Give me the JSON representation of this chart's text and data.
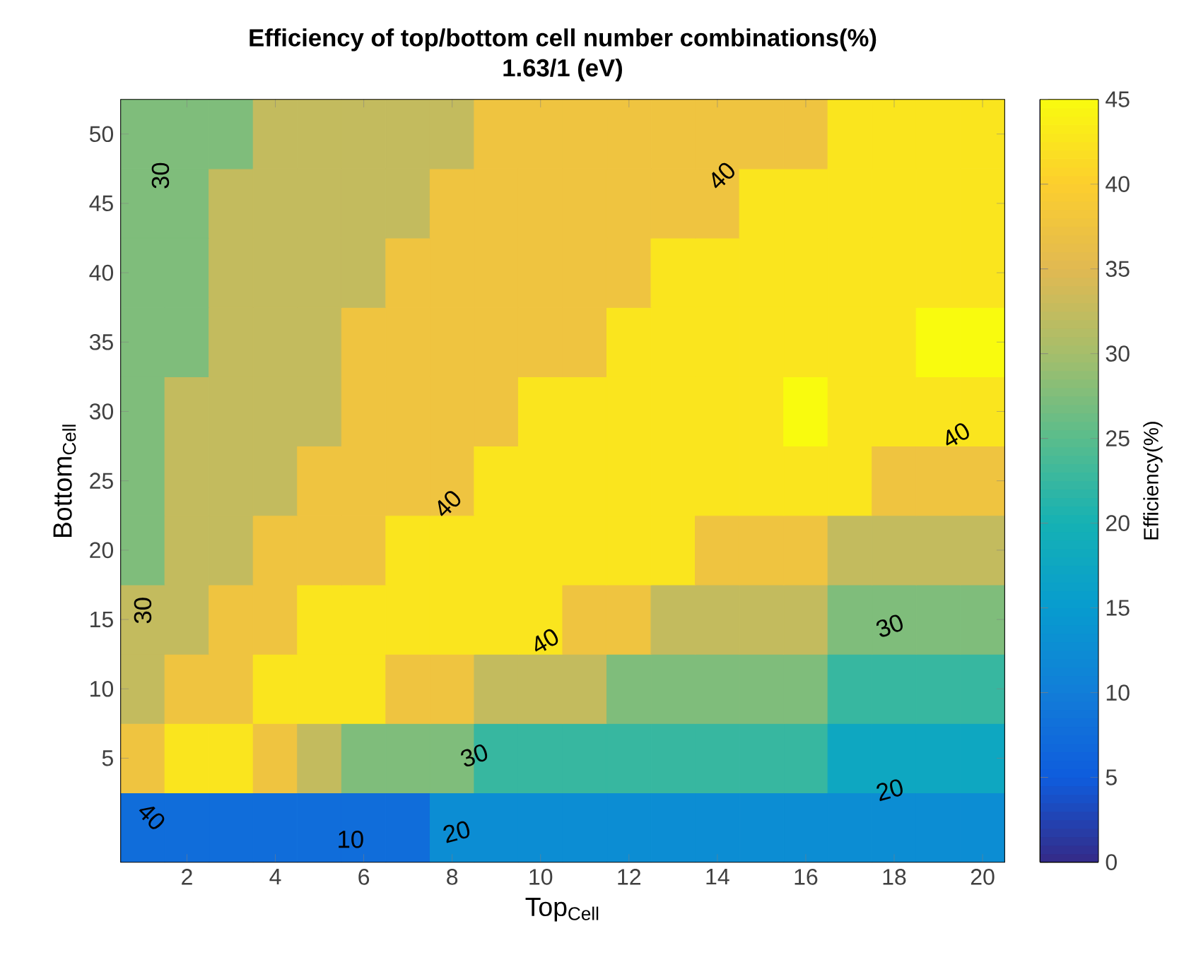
{
  "chart_data": {
    "type": "heatmap",
    "title": "Efficiency of top/bottom cell number combinations(%)",
    "subtitle": "1.63/1 (eV)",
    "xlabel": "Top$_{Cell}$",
    "ylabel": "Bottom$_{Cell}$",
    "clabel": "Efficiency(%)",
    "categories": [
      null,
      "2",
      null,
      "4",
      null,
      "6",
      null,
      "8",
      null,
      "10",
      null,
      "12",
      null,
      "14",
      null,
      "16",
      null,
      "18",
      null,
      "20"
    ],
    "y_categories": [
      "50",
      "45",
      "40",
      "35",
      "30",
      "25",
      "20",
      "15",
      "10",
      "5",
      null
    ],
    "cells": [
      [
        27.5,
        27.5,
        27.5,
        32.5,
        32.5,
        32.5,
        32.5,
        32.5,
        37.5,
        37.5,
        37.5,
        37.5,
        37.5,
        37.5,
        37.5,
        37.5,
        42.5,
        42.5,
        42.5,
        42.5
      ],
      [
        27.5,
        27.5,
        32.5,
        32.5,
        32.5,
        32.5,
        32.5,
        37.5,
        37.5,
        37.5,
        37.5,
        37.5,
        37.5,
        37.5,
        42.5,
        42.5,
        42.5,
        42.5,
        42.5,
        42.5
      ],
      [
        27.5,
        27.5,
        32.5,
        32.5,
        32.5,
        32.5,
        37.5,
        37.5,
        37.5,
        37.5,
        37.5,
        37.5,
        42.5,
        42.5,
        42.5,
        42.5,
        42.5,
        42.5,
        42.5,
        42.5
      ],
      [
        27.5,
        27.5,
        32.5,
        32.5,
        32.5,
        37.5,
        37.5,
        37.5,
        37.5,
        37.5,
        37.5,
        42.5,
        42.5,
        42.5,
        42.5,
        42.5,
        42.5,
        42.5,
        45,
        45
      ],
      [
        27.5,
        32.5,
        32.5,
        32.5,
        32.5,
        37.5,
        37.5,
        37.5,
        37.5,
        42.5,
        42.5,
        42.5,
        42.5,
        42.5,
        42.5,
        45,
        42.5,
        42.5,
        42.5,
        42.5
      ],
      [
        27.5,
        32.5,
        32.5,
        32.5,
        37.5,
        37.5,
        37.5,
        37.5,
        42.5,
        42.5,
        42.5,
        42.5,
        42.5,
        42.5,
        42.5,
        42.5,
        42.5,
        37.5,
        37.5,
        37.5
      ],
      [
        27.5,
        32.5,
        32.5,
        37.5,
        37.5,
        37.5,
        42.5,
        42.5,
        42.5,
        42.5,
        42.5,
        42.5,
        42.5,
        37.5,
        37.5,
        37.5,
        32.5,
        32.5,
        32.5,
        32.5
      ],
      [
        32.5,
        32.5,
        37.5,
        37.5,
        42.5,
        42.5,
        42.5,
        42.5,
        42.5,
        42.5,
        37.5,
        37.5,
        32.5,
        32.5,
        32.5,
        32.5,
        27.5,
        27.5,
        27.5,
        27.5
      ],
      [
        32.5,
        37.5,
        37.5,
        42.5,
        42.5,
        42.5,
        37.5,
        37.5,
        32.5,
        32.5,
        32.5,
        27.5,
        27.5,
        27.5,
        27.5,
        27.5,
        22.5,
        22.5,
        22.5,
        22.5
      ],
      [
        37.5,
        42.5,
        42.5,
        37.5,
        32.5,
        27.5,
        27.5,
        27.5,
        22.5,
        22.5,
        22.5,
        22.5,
        22.5,
        22.5,
        22.5,
        22.5,
        17.5,
        17.5,
        17.5,
        17.5
      ],
      [
        7.5,
        7.5,
        7.5,
        7.5,
        7.5,
        7.5,
        7.5,
        12.5,
        12.5,
        12.5,
        12.5,
        12.5,
        12.5,
        12.5,
        12.5,
        12.5,
        12.5,
        12.5,
        12.5,
        12.5
      ]
    ],
    "clim": [
      0,
      45
    ],
    "cticks": [
      0,
      5,
      10,
      15,
      20,
      25,
      30,
      35,
      40,
      45
    ],
    "annotations": [
      "30",
      "40",
      "30",
      "40",
      "40",
      "40",
      "30",
      "30",
      "40",
      "20",
      "20",
      "10"
    ]
  }
}
